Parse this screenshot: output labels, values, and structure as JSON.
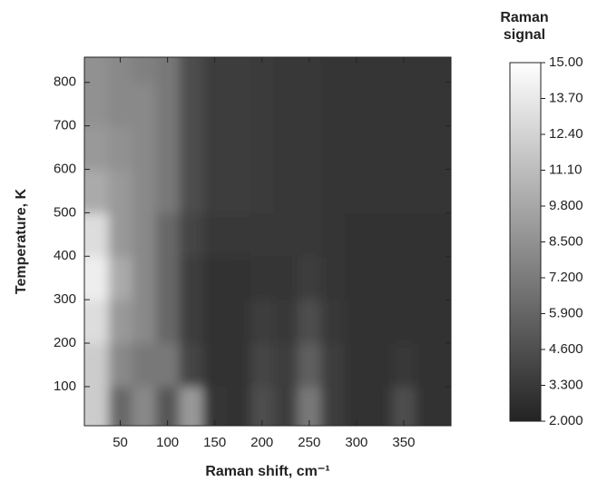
{
  "chart_data": {
    "type": "heatmap",
    "x_label": "Raman shift, cm⁻¹",
    "y_label": "Temperature, K",
    "colorbar_label": "Raman signal",
    "xlim": [
      12,
      400
    ],
    "xticks": [
      50,
      100,
      150,
      200,
      250,
      300,
      350
    ],
    "ylim": [
      10,
      858
    ],
    "yticks": [
      100,
      200,
      300,
      400,
      500,
      600,
      700,
      800
    ],
    "zlim": [
      2,
      15
    ],
    "colormap": [
      "#232323",
      "#ffffff"
    ],
    "zticks": [
      {
        "value": 15,
        "label": "15.00"
      },
      {
        "value": 13.7,
        "label": "13.70"
      },
      {
        "value": 12.4,
        "label": "12.40"
      },
      {
        "value": 11.1,
        "label": "11.10"
      },
      {
        "value": 9.8,
        "label": "9.800"
      },
      {
        "value": 8.5,
        "label": "8.500"
      },
      {
        "value": 7.2,
        "label": "7.200"
      },
      {
        "value": 5.9,
        "label": "5.900"
      },
      {
        "value": 4.6,
        "label": "4.600"
      },
      {
        "value": 3.3,
        "label": "3.300"
      },
      {
        "value": 2,
        "label": "2.000"
      }
    ],
    "x": [
      25,
      50,
      75,
      100,
      125,
      150,
      175,
      200,
      225,
      250,
      275,
      300,
      325,
      350,
      375
    ],
    "y": [
      50,
      150,
      250,
      350,
      450,
      550,
      650,
      750,
      850
    ],
    "z": [
      [
        12,
        6,
        8,
        5,
        9,
        3,
        2.8,
        4.5,
        3.5,
        7,
        3.5,
        2.8,
        2.8,
        4.5,
        2.8
      ],
      [
        12,
        8,
        7,
        7,
        4,
        2.8,
        2.8,
        4,
        3.5,
        5.5,
        3.5,
        2.8,
        2.8,
        3.2,
        2.8
      ],
      [
        13,
        9,
        8,
        6,
        3.5,
        2.8,
        2.8,
        3.5,
        3.2,
        4.5,
        3.2,
        2.8,
        2.8,
        2.8,
        2.8
      ],
      [
        14,
        10,
        8,
        6,
        3.5,
        2.8,
        2.8,
        3,
        3,
        3.5,
        3,
        2.8,
        2.8,
        2.8,
        2.8
      ],
      [
        13,
        9,
        8,
        6,
        4,
        3.3,
        3.2,
        3.2,
        3.2,
        3.2,
        3,
        2.9,
        2.9,
        2.9,
        2.9
      ],
      [
        10,
        9,
        8,
        7,
        4.5,
        3.6,
        3.5,
        3.4,
        3.3,
        3.2,
        3.1,
        3,
        3,
        3,
        3
      ],
      [
        9,
        8.5,
        8,
        7,
        4.5,
        3.6,
        3.5,
        3.4,
        3.3,
        3.2,
        3.1,
        3,
        3,
        3,
        3
      ],
      [
        8.5,
        8,
        8,
        7,
        4.5,
        3.6,
        3.5,
        3.4,
        3.3,
        3.2,
        3.1,
        3,
        3,
        3,
        3
      ],
      [
        8.5,
        8,
        7.5,
        7,
        4.5,
        3.6,
        3.5,
        3.4,
        3.3,
        3.2,
        3.1,
        3,
        3,
        3,
        3
      ]
    ]
  }
}
